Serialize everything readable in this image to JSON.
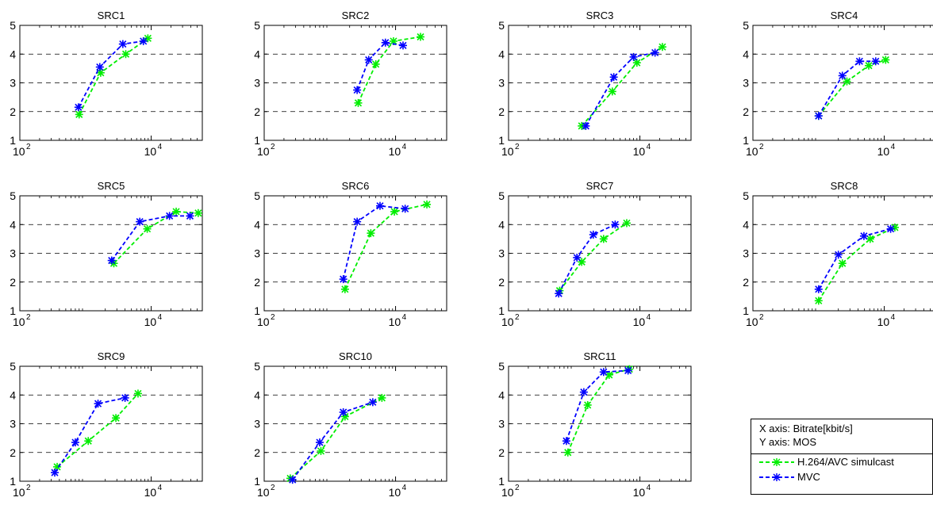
{
  "colors": {
    "h264": "#00ee00",
    "mvc": "#0000ff",
    "grid": "#000000",
    "axis": "#000000"
  },
  "note": {
    "x_axis": "X axis: Bitrate[kbit/s]",
    "y_axis": "Y axis: MOS"
  },
  "legend": [
    {
      "label": "H.264/AVC simulcast",
      "series_key": "h264"
    },
    {
      "label": "MVC",
      "series_key": "mvc"
    }
  ],
  "chart_data": [
    {
      "type": "line",
      "title": "SRC1",
      "xscale": "log",
      "xlim": [
        100,
        60000
      ],
      "ylim": [
        1,
        5
      ],
      "xticks": [
        {
          "base": "10",
          "exp": "2"
        },
        {
          "base": "10",
          "exp": "4"
        }
      ],
      "yticks": [
        1,
        2,
        3,
        4,
        5
      ],
      "ygrid": [
        2,
        3,
        4
      ],
      "series": [
        {
          "name": "H.264/AVC simulcast",
          "x": [
            800,
            1700,
            4100,
            8900
          ],
          "y": [
            1.9,
            3.35,
            4.0,
            4.55
          ]
        },
        {
          "name": "MVC",
          "x": [
            780,
            1650,
            3700,
            7600
          ],
          "y": [
            2.15,
            3.55,
            4.35,
            4.45
          ]
        }
      ]
    },
    {
      "type": "line",
      "title": "SRC2",
      "xscale": "log",
      "xlim": [
        100,
        60000
      ],
      "ylim": [
        1,
        5
      ],
      "xticks": [
        {
          "base": "10",
          "exp": "2"
        },
        {
          "base": "10",
          "exp": "4"
        }
      ],
      "yticks": [
        1,
        2,
        3,
        4,
        5
      ],
      "ygrid": [
        2,
        3,
        4
      ],
      "series": [
        {
          "name": "H.264/AVC simulcast",
          "x": [
            2700,
            5000,
            9300,
            24000
          ],
          "y": [
            2.3,
            3.65,
            4.45,
            4.6
          ]
        },
        {
          "name": "MVC",
          "x": [
            2600,
            3900,
            7000,
            13000
          ],
          "y": [
            2.75,
            3.8,
            4.4,
            4.3
          ]
        }
      ]
    },
    {
      "type": "line",
      "title": "SRC3",
      "xscale": "log",
      "xlim": [
        100,
        60000
      ],
      "ylim": [
        1,
        5
      ],
      "xticks": [
        {
          "base": "10",
          "exp": "2"
        },
        {
          "base": "10",
          "exp": "4"
        }
      ],
      "yticks": [
        1,
        2,
        3,
        4,
        5
      ],
      "ygrid": [
        2,
        3,
        4
      ],
      "series": [
        {
          "name": "H.264/AVC simulcast",
          "x": [
            1300,
            3800,
            9000,
            22000
          ],
          "y": [
            1.5,
            2.7,
            3.7,
            4.25
          ]
        },
        {
          "name": "MVC",
          "x": [
            1500,
            4000,
            8000,
            17000
          ],
          "y": [
            1.5,
            3.2,
            3.9,
            4.05
          ]
        }
      ]
    },
    {
      "type": "line",
      "title": "SRC4",
      "xscale": "log",
      "xlim": [
        100,
        60000
      ],
      "ylim": [
        1,
        5
      ],
      "xticks": [
        {
          "base": "10",
          "exp": "2"
        },
        {
          "base": "10",
          "exp": "4"
        }
      ],
      "yticks": [
        1,
        2,
        3,
        4,
        5
      ],
      "ygrid": [
        2,
        3,
        4
      ],
      "series": [
        {
          "name": "H.264/AVC simulcast",
          "x": [
            1000,
            2700,
            5800,
            10500
          ],
          "y": [
            1.85,
            3.05,
            3.6,
            3.8
          ]
        },
        {
          "name": "MVC",
          "x": [
            1000,
            2300,
            4200,
            7400
          ],
          "y": [
            1.85,
            3.25,
            3.75,
            3.75
          ]
        }
      ]
    },
    {
      "type": "line",
      "title": "SRC5",
      "xscale": "log",
      "xlim": [
        100,
        60000
      ],
      "ylim": [
        1,
        5
      ],
      "xticks": [
        {
          "base": "10",
          "exp": "2"
        },
        {
          "base": "10",
          "exp": "4"
        }
      ],
      "yticks": [
        1,
        2,
        3,
        4,
        5
      ],
      "ygrid": [
        2,
        3,
        4
      ],
      "series": [
        {
          "name": "H.264/AVC simulcast",
          "x": [
            2700,
            8700,
            24000,
            52000
          ],
          "y": [
            2.65,
            3.85,
            4.45,
            4.4
          ]
        },
        {
          "name": "MVC",
          "x": [
            2500,
            6700,
            19000,
            39000
          ],
          "y": [
            2.75,
            4.1,
            4.3,
            4.3
          ]
        }
      ]
    },
    {
      "type": "line",
      "title": "SRC6",
      "xscale": "log",
      "xlim": [
        100,
        60000
      ],
      "ylim": [
        1,
        5
      ],
      "xticks": [
        {
          "base": "10",
          "exp": "2"
        },
        {
          "base": "10",
          "exp": "4"
        }
      ],
      "yticks": [
        1,
        2,
        3,
        4,
        5
      ],
      "ygrid": [
        2,
        3,
        4
      ],
      "series": [
        {
          "name": "H.264/AVC simulcast",
          "x": [
            1700,
            4200,
            9600,
            30000
          ],
          "y": [
            1.75,
            3.7,
            4.45,
            4.7
          ]
        },
        {
          "name": "MVC",
          "x": [
            1600,
            2600,
            5800,
            14000
          ],
          "y": [
            2.1,
            4.1,
            4.65,
            4.55
          ]
        }
      ]
    },
    {
      "type": "line",
      "title": "SRC7",
      "xscale": "log",
      "xlim": [
        100,
        60000
      ],
      "ylim": [
        1,
        5
      ],
      "xticks": [
        {
          "base": "10",
          "exp": "2"
        },
        {
          "base": "10",
          "exp": "4"
        }
      ],
      "yticks": [
        1,
        2,
        3,
        4,
        5
      ],
      "ygrid": [
        2,
        3,
        4
      ],
      "series": [
        {
          "name": "H.264/AVC simulcast",
          "x": [
            600,
            1300,
            2800,
            6300
          ],
          "y": [
            1.7,
            2.7,
            3.5,
            4.05
          ]
        },
        {
          "name": "MVC",
          "x": [
            580,
            1100,
            1950,
            4200
          ],
          "y": [
            1.6,
            2.85,
            3.65,
            4.0
          ]
        }
      ]
    },
    {
      "type": "line",
      "title": "SRC8",
      "xscale": "log",
      "xlim": [
        100,
        60000
      ],
      "ylim": [
        1,
        5
      ],
      "xticks": [
        {
          "base": "10",
          "exp": "2"
        },
        {
          "base": "10",
          "exp": "4"
        }
      ],
      "yticks": [
        1,
        2,
        3,
        4,
        5
      ],
      "ygrid": [
        2,
        3,
        4
      ],
      "series": [
        {
          "name": "H.264/AVC simulcast",
          "x": [
            1000,
            2300,
            6100,
            14500
          ],
          "y": [
            1.35,
            2.65,
            3.5,
            3.9
          ]
        },
        {
          "name": "MVC",
          "x": [
            1000,
            2000,
            4900,
            12500
          ],
          "y": [
            1.75,
            2.95,
            3.6,
            3.85
          ]
        }
      ]
    },
    {
      "type": "line",
      "title": "SRC9",
      "xscale": "log",
      "xlim": [
        100,
        60000
      ],
      "ylim": [
        1,
        5
      ],
      "xticks": [
        {
          "base": "10",
          "exp": "2"
        },
        {
          "base": "10",
          "exp": "4"
        }
      ],
      "yticks": [
        1,
        2,
        3,
        4,
        5
      ],
      "ygrid": [
        2,
        3,
        4
      ],
      "series": [
        {
          "name": "H.264/AVC simulcast",
          "x": [
            370,
            1100,
            2900,
            6300
          ],
          "y": [
            1.5,
            2.4,
            3.2,
            4.05
          ]
        },
        {
          "name": "MVC",
          "x": [
            340,
            700,
            1550,
            4000
          ],
          "y": [
            1.3,
            2.35,
            3.7,
            3.9
          ]
        }
      ]
    },
    {
      "type": "line",
      "title": "SRC10",
      "xscale": "log",
      "xlim": [
        100,
        60000
      ],
      "ylim": [
        1,
        5
      ],
      "xticks": [
        {
          "base": "10",
          "exp": "2"
        },
        {
          "base": "10",
          "exp": "4"
        }
      ],
      "yticks": [
        1,
        2,
        3,
        4,
        5
      ],
      "ygrid": [
        2,
        3,
        4
      ],
      "series": [
        {
          "name": "H.264/AVC simulcast",
          "x": [
            250,
            730,
            1700,
            6200
          ],
          "y": [
            1.1,
            2.05,
            3.25,
            3.9
          ]
        },
        {
          "name": "MVC",
          "x": [
            270,
            700,
            1600,
            4500
          ],
          "y": [
            1.05,
            2.35,
            3.4,
            3.75
          ]
        }
      ]
    },
    {
      "type": "line",
      "title": "SRC11",
      "xscale": "log",
      "xlim": [
        100,
        60000
      ],
      "ylim": [
        1,
        5
      ],
      "xticks": [
        {
          "base": "10",
          "exp": "2"
        },
        {
          "base": "10",
          "exp": "4"
        }
      ],
      "yticks": [
        1,
        2,
        3,
        4,
        5
      ],
      "ygrid": [
        2,
        3,
        4
      ],
      "series": [
        {
          "name": "H.264/AVC simulcast",
          "x": [
            800,
            1600,
            3400,
            6900
          ],
          "y": [
            2.0,
            3.65,
            4.7,
            4.9
          ]
        },
        {
          "name": "MVC",
          "x": [
            760,
            1400,
            2800,
            6600
          ],
          "y": [
            2.4,
            4.1,
            4.8,
            4.85
          ]
        }
      ]
    }
  ]
}
